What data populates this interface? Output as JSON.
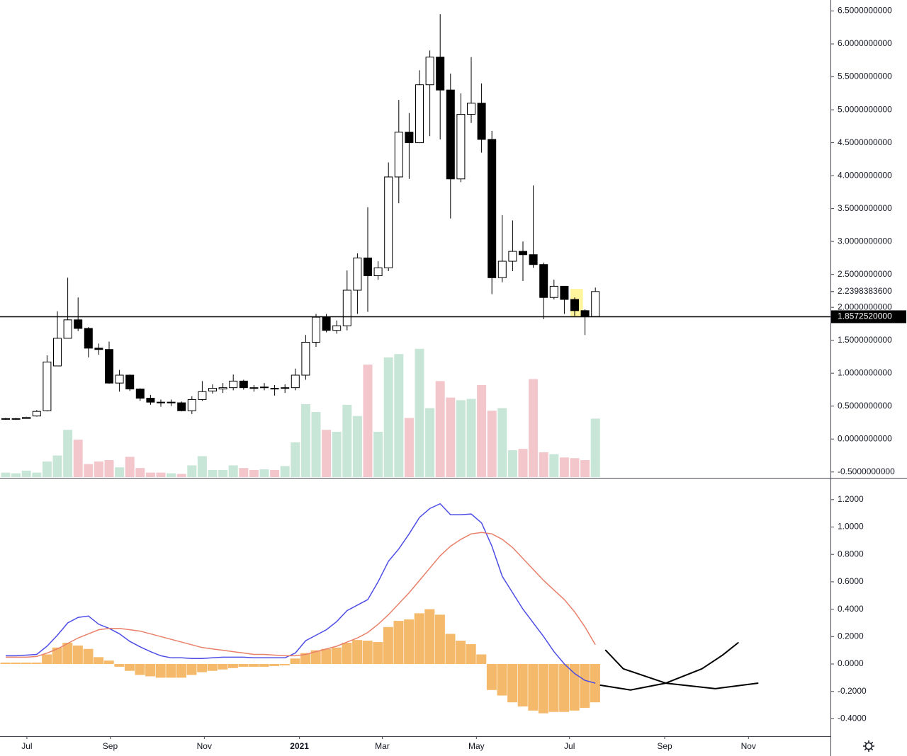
{
  "chart_data": [
    {
      "type": "candlestick",
      "x": [
        0,
        1,
        2,
        3,
        4,
        5,
        6,
        7,
        8,
        9,
        10,
        11,
        12,
        13,
        14,
        15,
        16,
        17,
        18,
        19,
        20,
        21,
        22,
        23,
        24,
        25,
        26,
        27,
        28,
        29,
        30,
        31,
        32,
        33,
        34,
        35,
        36,
        37,
        38,
        39,
        40,
        41,
        42,
        43,
        44,
        45,
        46,
        47,
        48,
        49,
        50,
        51,
        52,
        53,
        54,
        55,
        56,
        57
      ],
      "open": [
        0.3,
        0.3,
        0.31,
        0.35,
        0.43,
        1.11,
        1.53,
        1.81,
        1.68,
        1.38,
        1.36,
        0.85,
        0.97,
        0.76,
        0.62,
        0.56,
        0.55,
        0.55,
        0.43,
        0.6,
        0.73,
        0.76,
        0.78,
        0.88,
        0.78,
        0.78,
        0.77,
        0.77,
        0.78,
        0.97,
        1.47,
        1.85,
        1.65,
        1.72,
        2.26,
        2.75,
        2.48,
        2.6,
        3.98,
        4.66,
        4.5,
        5.38,
        5.8,
        5.3,
        3.95,
        4.93,
        5.1,
        4.55,
        2.45,
        2.7,
        2.85,
        2.8,
        2.65,
        2.15,
        2.32,
        2.12,
        1.95,
        1.86
      ],
      "high": [
        0.32,
        0.32,
        0.34,
        0.44,
        1.27,
        1.94,
        2.45,
        2.15,
        1.7,
        1.45,
        1.48,
        1.05,
        0.98,
        0.77,
        0.67,
        0.6,
        0.6,
        0.57,
        0.65,
        0.88,
        0.83,
        0.85,
        0.98,
        0.9,
        0.82,
        0.85,
        0.82,
        0.83,
        1.07,
        1.58,
        1.9,
        1.9,
        1.8,
        2.56,
        2.82,
        3.52,
        2.7,
        4.2,
        5.15,
        4.95,
        5.6,
        5.9,
        6.45,
        5.55,
        5.25,
        5.8,
        5.4,
        4.68,
        3.4,
        3.32,
        3.0,
        3.85,
        2.68,
        2.42,
        2.32,
        2.15,
        1.97,
        2.3
      ],
      "low": [
        0.29,
        0.29,
        0.31,
        0.34,
        0.42,
        1.11,
        1.53,
        1.64,
        1.24,
        1.28,
        0.84,
        0.72,
        0.73,
        0.58,
        0.52,
        0.49,
        0.5,
        0.42,
        0.38,
        0.58,
        0.69,
        0.7,
        0.74,
        0.75,
        0.72,
        0.74,
        0.66,
        0.7,
        0.74,
        0.9,
        1.4,
        1.62,
        1.6,
        1.65,
        1.9,
        1.93,
        2.42,
        2.55,
        3.58,
        3.95,
        4.5,
        4.6,
        4.55,
        3.35,
        3.9,
        4.8,
        4.35,
        2.2,
        2.38,
        2.55,
        2.4,
        2.6,
        1.82,
        2.12,
        1.9,
        1.87,
        1.58,
        1.86
      ],
      "close": [
        0.31,
        0.31,
        0.33,
        0.42,
        1.17,
        1.53,
        1.81,
        1.68,
        1.38,
        1.36,
        0.85,
        0.97,
        0.76,
        0.62,
        0.56,
        0.55,
        0.56,
        0.43,
        0.6,
        0.72,
        0.77,
        0.78,
        0.88,
        0.78,
        0.77,
        0.79,
        0.76,
        0.78,
        0.97,
        1.47,
        1.85,
        1.65,
        1.72,
        2.26,
        2.75,
        2.48,
        2.6,
        3.98,
        4.66,
        4.5,
        5.38,
        5.8,
        5.3,
        3.95,
        4.93,
        5.1,
        4.55,
        2.45,
        2.7,
        2.85,
        2.8,
        2.65,
        2.15,
        2.32,
        2.12,
        1.95,
        1.86,
        2.23983836
      ],
      "volume": [
        -0.51,
        -0.52,
        -0.48,
        -0.51,
        -0.34,
        -0.25,
        0.14,
        -0.01,
        -0.38,
        -0.34,
        -0.32,
        -0.43,
        -0.27,
        -0.44,
        -0.51,
        -0.51,
        -0.52,
        -0.53,
        -0.4,
        -0.26,
        -0.47,
        -0.47,
        -0.4,
        -0.44,
        -0.47,
        -0.46,
        -0.47,
        -0.41,
        -0.05,
        0.53,
        0.41,
        0.14,
        0.11,
        0.52,
        0.35,
        1.13,
        0.11,
        1.24,
        1.29,
        0.32,
        1.37,
        0.47,
        0.88,
        0.63,
        0.59,
        0.61,
        0.82,
        0.43,
        0.47,
        -0.17,
        -0.15,
        0.91,
        -0.2,
        -0.23,
        -0.28,
        -0.29,
        -0.32,
        0.31
      ],
      "up_color": "#ffffff",
      "down_color": "#000000",
      "border_color": "#000000",
      "volume_up_color": "#c8e6d7",
      "volume_down_color": "#f2c6cb",
      "xlim": [
        -0.548,
        79.726
      ],
      "ylim": [
        -0.578,
        6.667
      ],
      "yticks": [
        {
          "value": 6.5,
          "label": "6.5000000000"
        },
        {
          "value": 6.0,
          "label": "6.0000000000"
        },
        {
          "value": 5.5,
          "label": "5.5000000000"
        },
        {
          "value": 5.0,
          "label": "5.0000000000"
        },
        {
          "value": 4.5,
          "label": "4.5000000000"
        },
        {
          "value": 4.0,
          "label": "4.0000000000"
        },
        {
          "value": 3.5,
          "label": "3.5000000000"
        },
        {
          "value": 3.0,
          "label": "3.0000000000"
        },
        {
          "value": 2.5,
          "label": "2.5000000000"
        },
        {
          "value": 2.0,
          "label": "2.0000000000"
        },
        {
          "value": 1.5,
          "label": "1.5000000000"
        },
        {
          "value": 1.0,
          "label": "1.0000000000"
        },
        {
          "value": 0.5,
          "label": "0.5000000000"
        },
        {
          "value": 0,
          "label": "0.0000000000"
        },
        {
          "value": -0.5,
          "label": "-0.5000000000"
        }
      ],
      "hline": {
        "value": 1.857252,
        "label": "1.8572520000"
      },
      "last_price": {
        "value": 2.23983836,
        "label": "2.2398383600"
      },
      "highlight": {
        "x": [
          54.6,
          55.8
        ],
        "y": [
          1.86,
          2.28
        ],
        "color": "#fff59d"
      }
    },
    {
      "type": "macd",
      "x": [
        0,
        1,
        2,
        3,
        4,
        5,
        6,
        7,
        8,
        9,
        10,
        11,
        12,
        13,
        14,
        15,
        16,
        17,
        18,
        19,
        20,
        21,
        22,
        23,
        24,
        25,
        26,
        27,
        28,
        29,
        30,
        31,
        32,
        33,
        34,
        35,
        36,
        37,
        38,
        39,
        40,
        41,
        42,
        43,
        44,
        45,
        46,
        47,
        48,
        49,
        50,
        51,
        52,
        53,
        54,
        55,
        56,
        57
      ],
      "histogram": {
        "color": "#f5b96b",
        "values": [
          0.01,
          0.01,
          0.01,
          0.01,
          0.07,
          0.12,
          0.155,
          0.135,
          0.11,
          0.05,
          0.025,
          -0.02,
          -0.05,
          -0.08,
          -0.09,
          -0.1,
          -0.1,
          -0.1,
          -0.08,
          -0.06,
          -0.05,
          -0.04,
          -0.03,
          -0.02,
          -0.02,
          -0.02,
          -0.015,
          -0.01,
          0.04,
          0.08,
          0.1,
          0.11,
          0.12,
          0.155,
          0.175,
          0.17,
          0.16,
          0.27,
          0.315,
          0.325,
          0.37,
          0.4,
          0.36,
          0.22,
          0.17,
          0.145,
          0.07,
          -0.19,
          -0.23,
          -0.28,
          -0.31,
          -0.34,
          -0.36,
          -0.35,
          -0.35,
          -0.34,
          -0.32,
          -0.28
        ]
      },
      "series": [
        {
          "color": "#4d4de6",
          "values": [
            0.06,
            0.06,
            0.065,
            0.07,
            0.13,
            0.21,
            0.3,
            0.34,
            0.35,
            0.29,
            0.26,
            0.22,
            0.165,
            0.125,
            0.09,
            0.06,
            0.045,
            0.045,
            0.04,
            0.04,
            0.045,
            0.05,
            0.05,
            0.05,
            0.045,
            0.045,
            0.045,
            0.045,
            0.08,
            0.17,
            0.21,
            0.25,
            0.31,
            0.39,
            0.43,
            0.47,
            0.6,
            0.75,
            0.84,
            0.95,
            1.07,
            1.135,
            1.17,
            1.09,
            1.09,
            1.095,
            1.03,
            0.86,
            0.64,
            0.52,
            0.4,
            0.3,
            0.2,
            0.09,
            0,
            -0.07,
            -0.12,
            -0.14
          ]
        },
        {
          "color": "#e8806a",
          "values": [
            0.05,
            0.05,
            0.05,
            0.055,
            0.08,
            0.11,
            0.15,
            0.19,
            0.22,
            0.25,
            0.26,
            0.26,
            0.25,
            0.24,
            0.22,
            0.2,
            0.18,
            0.16,
            0.14,
            0.12,
            0.11,
            0.1,
            0.09,
            0.08,
            0.07,
            0.07,
            0.065,
            0.06,
            0.06,
            0.07,
            0.09,
            0.11,
            0.13,
            0.16,
            0.19,
            0.23,
            0.29,
            0.36,
            0.44,
            0.52,
            0.61,
            0.7,
            0.79,
            0.86,
            0.91,
            0.95,
            0.96,
            0.95,
            0.91,
            0.85,
            0.77,
            0.69,
            0.61,
            0.54,
            0.47,
            0.38,
            0.27,
            0.14
          ]
        }
      ],
      "drawings": [
        {
          "color": "#000000",
          "x": [
            57.5,
            60.4,
            63.8,
            67.3,
            69.3,
            70.8
          ],
          "y": [
            -0.155,
            -0.19,
            -0.14,
            -0.035,
            0.065,
            0.155
          ]
        },
        {
          "color": "#000000",
          "x": [
            58.0,
            59.7,
            63.8,
            68.6,
            72.7
          ],
          "y": [
            0.1,
            -0.035,
            -0.14,
            -0.18,
            -0.14
          ]
        }
      ],
      "xlim": [
        -0.548,
        79.726
      ],
      "ylim": [
        -0.527,
        1.354
      ],
      "yticks": [
        {
          "value": 1.2,
          "label": "1.2000"
        },
        {
          "value": 1.0,
          "label": "1.0000"
        },
        {
          "value": 0.8,
          "label": "0.8000"
        },
        {
          "value": 0.6,
          "label": "0.6000"
        },
        {
          "value": 0.4,
          "label": "0.4000"
        },
        {
          "value": 0.2,
          "label": "0.2000"
        },
        {
          "value": 0,
          "label": "0.0000"
        },
        {
          "value": -0.2,
          "label": "-0.2000"
        },
        {
          "value": -0.4,
          "label": "-0.4000"
        }
      ],
      "xticks": [
        {
          "value": 2.05,
          "label": "Jul"
        },
        {
          "value": 10.1,
          "label": "Sep"
        },
        {
          "value": 19.2,
          "label": "Nov"
        },
        {
          "value": 28.4,
          "label": "2021"
        },
        {
          "value": 36.4,
          "label": "Mar"
        },
        {
          "value": 45.5,
          "label": "May"
        },
        {
          "value": 54.5,
          "label": "Jul"
        },
        {
          "value": 63.7,
          "label": "Sep"
        },
        {
          "value": 71.8,
          "label": "Nov"
        }
      ]
    }
  ]
}
